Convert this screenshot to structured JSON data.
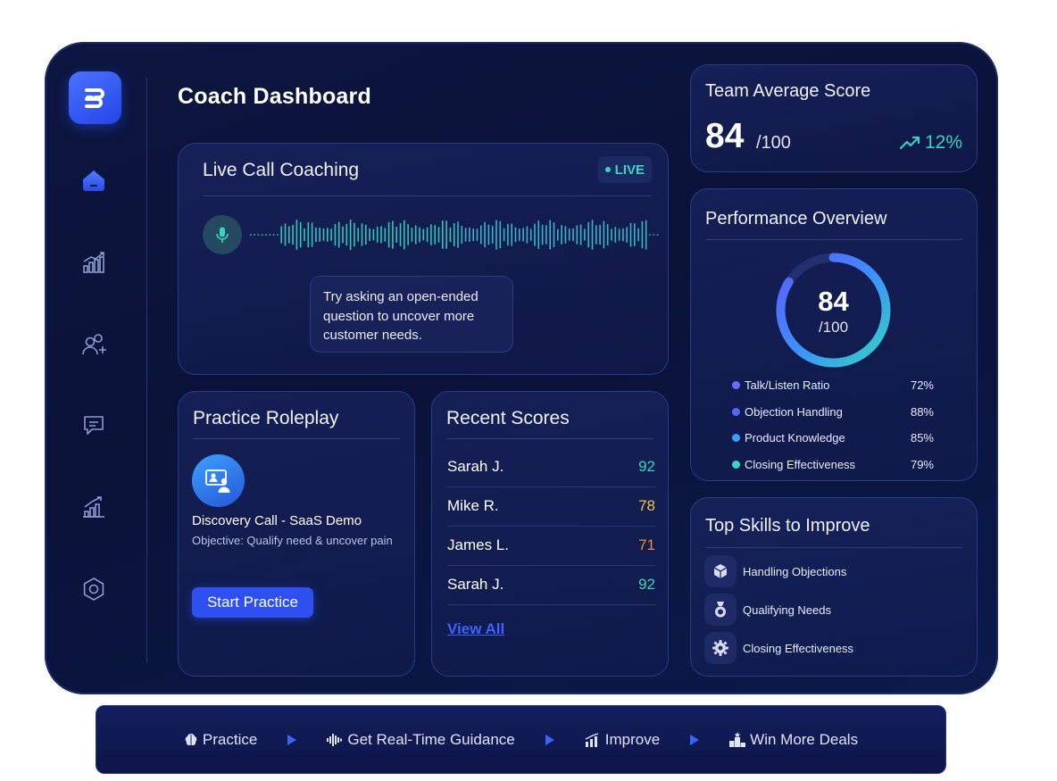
{
  "page": {
    "title": "Coach Dashboard"
  },
  "sidebar": {
    "items": [
      {
        "icon": "home-icon",
        "active": true
      },
      {
        "icon": "analytics-icon"
      },
      {
        "icon": "add-user-icon"
      },
      {
        "icon": "chat-icon"
      },
      {
        "icon": "growth-chart-icon"
      },
      {
        "icon": "settings-icon"
      }
    ]
  },
  "live_call": {
    "title": "Live Call Coaching",
    "badge": "LIVE",
    "tip": "Try  asking an open-ended question to uncover more customer needs."
  },
  "practice": {
    "title": "Practice Roleplay",
    "scenario": "Discovery Call - SaaS Demo",
    "objective": "Objective: Qualify need & uncover pain",
    "button": "Start Practice"
  },
  "recent_scores": {
    "title": "Recent Scores",
    "rows": [
      {
        "name": "Sarah J.",
        "score": "92",
        "color": "#38d6c1"
      },
      {
        "name": "Mike R.",
        "score": "78",
        "color": "#f5c542"
      },
      {
        "name": "James L.",
        "score": "71",
        "color": "#f08a3c"
      },
      {
        "name": "Sarah J.",
        "score": "92",
        "color": "#38d6c1"
      }
    ],
    "view_all": "View All"
  },
  "team_average": {
    "title": "Team Average Score",
    "score": "84",
    "denominator": "/100",
    "trend": "12%"
  },
  "performance": {
    "title": "Performance Overview",
    "score": "84",
    "denominator": "/100",
    "fraction": 0.84,
    "metrics": [
      {
        "label": "Talk/Listen Ratio",
        "value": "72%",
        "color": "#6a6cff"
      },
      {
        "label": "Objection Handling",
        "value": "88%",
        "color": "#5566ff"
      },
      {
        "label": "Product Knowledge",
        "value": "85%",
        "color": "#3f9bff"
      },
      {
        "label": "Closing Effectiveness",
        "value": "79%",
        "color": "#38d6c1"
      }
    ]
  },
  "skills": {
    "title": "Top Skills to Improve",
    "items": [
      {
        "label": "Handling Objections",
        "icon": "cube-icon"
      },
      {
        "label": "Qualifying Needs",
        "icon": "medal-icon"
      },
      {
        "label": "Closing Effectiveness",
        "icon": "gear-icon"
      }
    ]
  },
  "flow": {
    "steps": [
      {
        "label": "Practice",
        "icon": "brain-icon"
      },
      {
        "label": "Get Real-Time Guidance",
        "icon": "soundwave-icon"
      },
      {
        "label": "Improve",
        "icon": "bar-chart-icon"
      },
      {
        "label": "Win More Deals",
        "icon": "podium-icon"
      }
    ]
  }
}
